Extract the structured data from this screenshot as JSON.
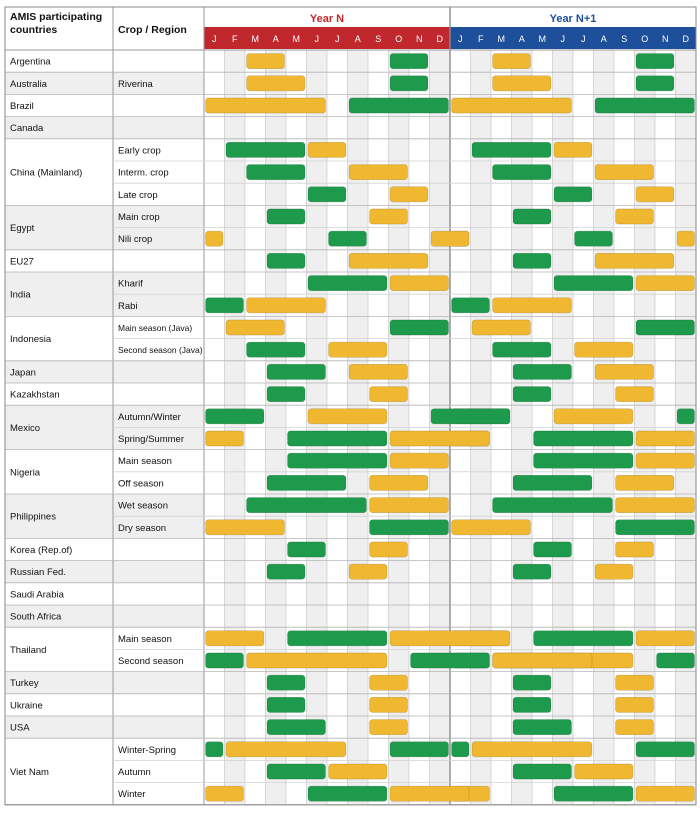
{
  "chart_data": {
    "type": "gantt",
    "header": {
      "col1": [
        "AMIS participating",
        "countries"
      ],
      "col2": "Crop / Region",
      "year_n": "Year N",
      "year_n1": "Year N+1",
      "months": [
        "J",
        "F",
        "M",
        "A",
        "M",
        "J",
        "J",
        "A",
        "S",
        "O",
        "N",
        "D"
      ]
    },
    "colors": {
      "year_n": "#c0282e",
      "year_n1": "#1e4f9a",
      "planting": "#f0b731",
      "harvesting": "#1e9a4c",
      "shade": "#efefef",
      "grid": "#c8c8c8"
    },
    "legend": [
      "planting",
      "harvesting"
    ],
    "rows": [
      {
        "country": "Argentina",
        "region": "",
        "planting": [
          [
            3,
            4
          ]
        ],
        "harvest": [
          [
            10,
            11
          ]
        ]
      },
      {
        "country": "Australia",
        "region": "Riverina",
        "planting": [
          [
            3,
            5
          ]
        ],
        "harvest": [
          [
            10,
            11
          ]
        ]
      },
      {
        "country": "Brazil",
        "region": "",
        "planting": [
          [
            1,
            6
          ]
        ],
        "harvest": [
          [
            8,
            12
          ]
        ]
      },
      {
        "country": "Canada",
        "region": "",
        "planting": [],
        "harvest": []
      },
      {
        "country": "China (Mainland)",
        "region": "Early crop",
        "planting": [
          [
            6,
            7
          ]
        ],
        "harvest": [
          [
            2,
            5
          ]
        ]
      },
      {
        "country": "",
        "region": "Interm. crop",
        "planting": [
          [
            8,
            10
          ]
        ],
        "harvest": [
          [
            3,
            5
          ]
        ]
      },
      {
        "country": "",
        "region": "Late crop",
        "planting": [
          [
            10,
            11
          ]
        ],
        "harvest": [
          [
            6,
            7
          ]
        ]
      },
      {
        "country": "Egypt",
        "region": "Main crop",
        "planting": [
          [
            9,
            10
          ]
        ],
        "harvest": [
          [
            4,
            5
          ]
        ]
      },
      {
        "country": "",
        "region": "Nili crop",
        "planting": [
          [
            1,
            1
          ],
          [
            12,
            13
          ]
        ],
        "harvest": [
          [
            7,
            8
          ]
        ]
      },
      {
        "country": "EU27",
        "region": "",
        "planting": [
          [
            8,
            11
          ]
        ],
        "harvest": [
          [
            4,
            5
          ]
        ]
      },
      {
        "country": "India",
        "region": "Kharif",
        "planting": [
          [
            10,
            12
          ]
        ],
        "harvest": [
          [
            6,
            9
          ]
        ]
      },
      {
        "country": "",
        "region": "Rabi",
        "planting": [
          [
            3,
            6
          ]
        ],
        "harvest": [
          [
            1,
            2
          ]
        ]
      },
      {
        "country": "Indonesia",
        "region": "Main season (Java)",
        "planting": [
          [
            2,
            4
          ]
        ],
        "harvest": [
          [
            10,
            12
          ]
        ]
      },
      {
        "country": "",
        "region": "Second season (Java)",
        "planting": [
          [
            7,
            9
          ]
        ],
        "harvest": [
          [
            3,
            5
          ]
        ]
      },
      {
        "country": "Japan",
        "region": "",
        "planting": [
          [
            8,
            10
          ]
        ],
        "harvest": [
          [
            4,
            6
          ]
        ]
      },
      {
        "country": "Kazakhstan",
        "region": "",
        "planting": [
          [
            9,
            10
          ]
        ],
        "harvest": [
          [
            4,
            5
          ]
        ]
      },
      {
        "country": "Mexico",
        "region": "Autumn/Winter",
        "planting": [
          [
            6,
            9
          ]
        ],
        "harvest": [
          [
            1,
            3
          ],
          [
            12,
            15
          ]
        ]
      },
      {
        "country": "",
        "region": "Spring/Summer",
        "planting": [
          [
            1,
            2
          ],
          [
            10,
            14
          ]
        ],
        "harvest": [
          [
            5,
            9
          ]
        ]
      },
      {
        "country": "Nigeria",
        "region": "Main season",
        "planting": [
          [
            10,
            12
          ]
        ],
        "harvest": [
          [
            5,
            9
          ]
        ]
      },
      {
        "country": "",
        "region": "Off season",
        "planting": [
          [
            9,
            11
          ]
        ],
        "harvest": [
          [
            4,
            7
          ]
        ]
      },
      {
        "country": "Philippines",
        "region": "Wet season",
        "planting": [
          [
            9,
            12
          ]
        ],
        "harvest": [
          [
            3,
            8
          ]
        ]
      },
      {
        "country": "",
        "region": "Dry season",
        "planting": [
          [
            1,
            4
          ]
        ],
        "harvest": [
          [
            9,
            12
          ]
        ]
      },
      {
        "country": "Korea (Rep.of)",
        "region": "",
        "planting": [
          [
            9,
            10
          ]
        ],
        "harvest": [
          [
            5,
            6
          ]
        ]
      },
      {
        "country": "Russian Fed.",
        "region": "",
        "planting": [
          [
            8,
            9
          ]
        ],
        "harvest": [
          [
            4,
            5
          ]
        ]
      },
      {
        "country": "Saudi Arabia",
        "region": "",
        "planting": [],
        "harvest": []
      },
      {
        "country": "South Africa",
        "region": "",
        "planting": [],
        "harvest": []
      },
      {
        "country": "Thailand",
        "region": "Main season",
        "planting": [
          [
            1,
            3
          ],
          [
            10,
            15
          ]
        ],
        "harvest": [
          [
            5,
            9
          ]
        ]
      },
      {
        "country": "",
        "region": "Second season",
        "planting": [
          [
            3,
            9
          ],
          [
            15,
            19
          ]
        ],
        "harvest": [
          [
            1,
            2
          ],
          [
            11,
            14
          ]
        ]
      },
      {
        "country": "Turkey",
        "region": "",
        "planting": [
          [
            9,
            10
          ]
        ],
        "harvest": [
          [
            4,
            5
          ]
        ]
      },
      {
        "country": "Ukraine",
        "region": "",
        "planting": [
          [
            9,
            10
          ]
        ],
        "harvest": [
          [
            4,
            5
          ]
        ]
      },
      {
        "country": "USA",
        "region": "",
        "planting": [
          [
            9,
            10
          ]
        ],
        "harvest": [
          [
            4,
            6
          ]
        ]
      },
      {
        "country": "Viet Nam",
        "region": "Winter-Spring",
        "planting": [
          [
            2,
            7
          ]
        ],
        "harvest": [
          [
            1,
            1
          ],
          [
            10,
            12
          ]
        ]
      },
      {
        "country": "",
        "region": "Autumn",
        "planting": [
          [
            7,
            9
          ]
        ],
        "harvest": [
          [
            4,
            6
          ]
        ]
      },
      {
        "country": "",
        "region": "Winter",
        "planting": [
          [
            1,
            2
          ],
          [
            10,
            13
          ]
        ],
        "harvest": [
          [
            6,
            9
          ]
        ]
      }
    ]
  }
}
